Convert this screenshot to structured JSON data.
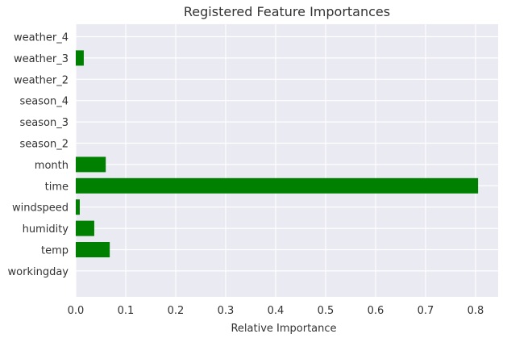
{
  "chart_data": {
    "type": "bar",
    "orientation": "horizontal",
    "title": "Registered Feature Importances",
    "xlabel": "Relative Importance",
    "ylabel": "",
    "categories": [
      "workingday",
      "temp",
      "humidity",
      "windspeed",
      "time",
      "month",
      "season_2",
      "season_3",
      "season_4",
      "weather_2",
      "weather_3",
      "weather_4"
    ],
    "values": [
      0.0,
      0.068,
      0.037,
      0.008,
      0.805,
      0.06,
      0.0,
      0.0,
      0.0,
      0.0,
      0.016,
      0.0
    ],
    "xlim": [
      0.0,
      0.84
    ],
    "xticks": [
      "0.0",
      "0.1",
      "0.2",
      "0.3",
      "0.4",
      "0.5",
      "0.6",
      "0.7",
      "0.8"
    ],
    "grid": true,
    "colors": {
      "bar": "#008000",
      "plot_background": "#eaeaf2",
      "grid": "#ffffff",
      "text": "#333333"
    }
  }
}
